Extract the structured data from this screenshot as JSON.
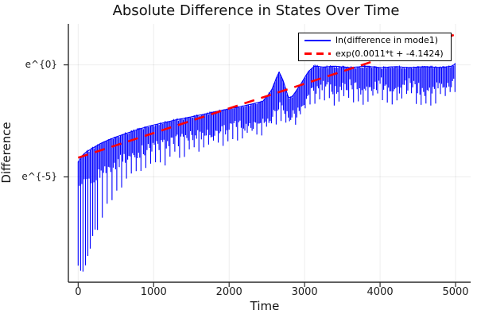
{
  "chart_data": {
    "type": "line",
    "title": "Absolute Difference in States Over Time",
    "xlabel": "Time",
    "ylabel": "Difference",
    "grid": true,
    "x_axis": {
      "ticks": [
        0,
        1000,
        2000,
        3000,
        4000,
        5000
      ],
      "range": [
        -130,
        5200
      ]
    },
    "y_axis": {
      "scale": "ln",
      "ticks": [
        {
          "value_ln": 0,
          "label": "e^{0}"
        },
        {
          "value_ln": -5,
          "label": "e^{-5}"
        }
      ],
      "range_ln": [
        -9.7,
        1.83
      ]
    },
    "legend": {
      "position": "top-right"
    },
    "series": [
      {
        "name": "ln(difference in mode1)",
        "color": "#0000FF",
        "style": "solid",
        "kind": "noisy-oscillating-band",
        "note": "envelope keyframes: [t, upper_ln, typical_lower_ln, deep_spike_ln]",
        "envelope_ln": [
          [
            0,
            -4.35,
            -5.6,
            -8.8
          ],
          [
            40,
            -4.1,
            -5.5,
            -9.35
          ],
          [
            100,
            -3.9,
            -5.3,
            -9.1
          ],
          [
            150,
            -3.8,
            -5.2,
            -8.4
          ],
          [
            200,
            -3.7,
            -5.05,
            -7.7
          ],
          [
            300,
            -3.5,
            -4.85,
            -6.8
          ],
          [
            400,
            -3.35,
            -4.6,
            -6.1
          ],
          [
            500,
            -3.22,
            -4.4,
            -5.6
          ],
          [
            600,
            -3.1,
            -4.2,
            -5.2
          ],
          [
            800,
            -2.87,
            -3.9,
            -4.7
          ],
          [
            1000,
            -2.68,
            -3.65,
            -4.45
          ],
          [
            1150,
            -2.57,
            -3.55,
            -4.3
          ],
          [
            1300,
            -2.45,
            -3.4,
            -4.0
          ],
          [
            1500,
            -2.32,
            -3.2,
            -3.85
          ],
          [
            1700,
            -2.18,
            -3.05,
            -3.6
          ],
          [
            1900,
            -2.03,
            -2.9,
            -3.45
          ],
          [
            2100,
            -1.9,
            -2.75,
            -3.25
          ],
          [
            2300,
            -1.75,
            -2.6,
            -3.1
          ],
          [
            2450,
            -1.62,
            -2.5,
            -2.95
          ],
          [
            2560,
            -1.15,
            -2.25,
            -2.7
          ],
          [
            2660,
            -0.3,
            -1.75,
            -2.4
          ],
          [
            2710,
            -0.65,
            -1.95,
            -2.5
          ],
          [
            2790,
            -1.5,
            -2.3,
            -2.65
          ],
          [
            2840,
            -1.4,
            -2.25,
            -2.6
          ],
          [
            2950,
            -0.85,
            -1.9,
            -2.3
          ],
          [
            3050,
            -0.3,
            -1.4,
            -1.95
          ],
          [
            3130,
            -0.05,
            -1.15,
            -1.7
          ],
          [
            3250,
            -0.1,
            -0.95,
            -1.5
          ],
          [
            3400,
            -0.06,
            -1.1,
            -1.7
          ],
          [
            3600,
            -0.12,
            -0.85,
            -1.45
          ],
          [
            3800,
            -0.06,
            -1.15,
            -1.75
          ],
          [
            4000,
            -0.12,
            -0.8,
            -1.35
          ],
          [
            4200,
            -0.08,
            -1.1,
            -1.7
          ],
          [
            4400,
            -0.12,
            -0.85,
            -1.4
          ],
          [
            4600,
            -0.08,
            -1.25,
            -1.85
          ],
          [
            4800,
            -0.12,
            -0.9,
            -1.45
          ],
          [
            4950,
            -0.06,
            -0.75,
            -1.2
          ],
          [
            5000,
            0.05,
            -0.7,
            -1.1
          ]
        ]
      },
      {
        "name": "exp(0.0011*t + -4.1424)",
        "color": "#FF0000",
        "style": "dashed",
        "kind": "fit-line",
        "slope": 0.0011,
        "intercept": -4.1424,
        "t_range": [
          0,
          5000
        ]
      }
    ]
  }
}
